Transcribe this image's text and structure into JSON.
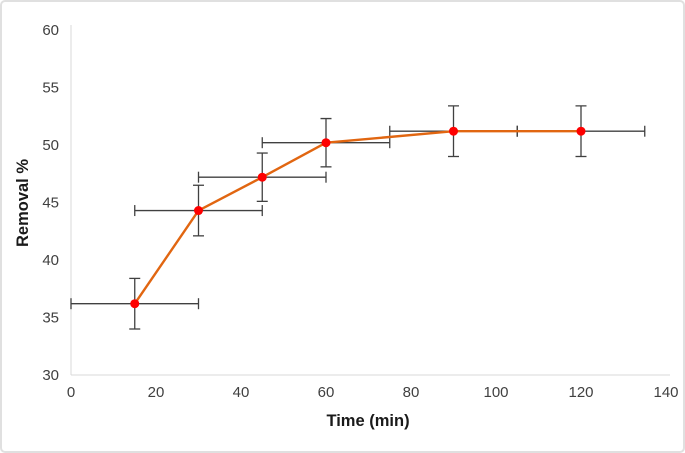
{
  "chart_data": {
    "type": "line",
    "title": "",
    "xlabel": "Time (min)",
    "ylabel": "Removal %",
    "x": [
      15,
      30,
      45,
      60,
      90,
      120
    ],
    "y": [
      36.2,
      44.3,
      47.2,
      50.2,
      51.2,
      51.2
    ],
    "x_err": [
      15,
      15,
      15,
      15,
      15,
      15
    ],
    "y_err": [
      2.2,
      2.2,
      2.1,
      2.1,
      2.2,
      2.2
    ],
    "xlim": [
      0,
      140
    ],
    "ylim": [
      30,
      60
    ],
    "x_ticks": [
      0,
      20,
      40,
      60,
      80,
      100,
      120,
      140
    ],
    "y_ticks": [
      30,
      35,
      40,
      45,
      50,
      55,
      60
    ],
    "grid": false,
    "legend": false,
    "marker_shape": "circle",
    "colors": {
      "line": "#E16611",
      "marker": "#FE0000",
      "error_bar": "#404040",
      "axis_line": "#D9D9D9",
      "tick_label": "#404040",
      "axis_title": "#1A1A1A",
      "frame_border": "#E0E0E0",
      "background": "#FFFFFF"
    }
  }
}
